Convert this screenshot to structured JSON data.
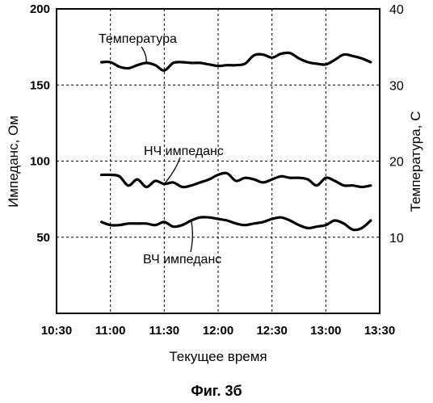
{
  "chart_data": {
    "type": "line",
    "caption": "Фиг. 3б",
    "xlabel": "Текущее время",
    "ylabel_left": "Импеданс, Ом",
    "ylabel_right": "Температура, С",
    "x_ticks": [
      "10:30",
      "11:00",
      "11:30",
      "12:00",
      "12:30",
      "13:00",
      "13:30"
    ],
    "x_range": [
      "10:30",
      "13:30"
    ],
    "y_left_ticks": [
      50,
      100,
      150,
      200
    ],
    "y_left_range": [
      0,
      200
    ],
    "y_right_ticks": [
      10,
      20,
      30,
      40
    ],
    "y_right_range": [
      0,
      40
    ],
    "grid": true,
    "series": [
      {
        "name": "Температура",
        "axis": "right",
        "x": [
          "10:55",
          "11:00",
          "11:05",
          "11:10",
          "11:15",
          "11:20",
          "11:25",
          "11:30",
          "11:35",
          "11:40",
          "11:45",
          "11:50",
          "11:55",
          "12:00",
          "12:05",
          "12:10",
          "12:15",
          "12:20",
          "12:25",
          "12:30",
          "12:35",
          "12:40",
          "12:45",
          "12:50",
          "12:55",
          "13:00",
          "13:05",
          "13:10",
          "13:15",
          "13:20",
          "13:25"
        ],
        "values": [
          33.0,
          33.0,
          32.4,
          32.2,
          32.6,
          32.9,
          32.6,
          31.9,
          32.9,
          33.0,
          32.9,
          32.9,
          32.7,
          32.5,
          32.6,
          32.6,
          32.8,
          33.9,
          34.0,
          33.6,
          34.1,
          34.2,
          33.5,
          33.0,
          32.8,
          32.7,
          33.3,
          34.0,
          33.8,
          33.5,
          33.0
        ]
      },
      {
        "name": "НЧ импеданс",
        "axis": "left",
        "x": [
          "10:55",
          "11:00",
          "11:05",
          "11:10",
          "11:15",
          "11:20",
          "11:25",
          "11:30",
          "11:35",
          "11:40",
          "11:45",
          "11:50",
          "11:55",
          "12:00",
          "12:05",
          "12:10",
          "12:15",
          "12:20",
          "12:25",
          "12:30",
          "12:35",
          "12:40",
          "12:45",
          "12:50",
          "12:55",
          "13:00",
          "13:05",
          "13:10",
          "13:15",
          "13:20",
          "13:25"
        ],
        "values": [
          91,
          91,
          90,
          84,
          88,
          83,
          87,
          85,
          86,
          83,
          84,
          86,
          88,
          91,
          92,
          87,
          89,
          88,
          86,
          88,
          90,
          89,
          89,
          88,
          84,
          89,
          87,
          84,
          84,
          83,
          84
        ]
      },
      {
        "name": "ВЧ импеданс",
        "axis": "left",
        "x": [
          "10:55",
          "11:00",
          "11:05",
          "11:10",
          "11:15",
          "11:20",
          "11:25",
          "11:30",
          "11:35",
          "11:40",
          "11:45",
          "11:50",
          "11:55",
          "12:00",
          "12:05",
          "12:10",
          "12:15",
          "12:20",
          "12:25",
          "12:30",
          "12:35",
          "12:40",
          "12:45",
          "12:50",
          "12:55",
          "13:00",
          "13:05",
          "13:10",
          "13:15",
          "13:20",
          "13:25"
        ],
        "values": [
          60,
          58,
          58,
          59,
          59,
          59,
          58,
          60,
          57,
          58,
          61,
          63,
          63,
          62,
          61,
          59,
          58,
          59,
          60,
          62,
          63,
          61,
          58,
          56,
          57,
          58,
          61,
          59,
          55,
          56,
          61
        ]
      }
    ]
  }
}
